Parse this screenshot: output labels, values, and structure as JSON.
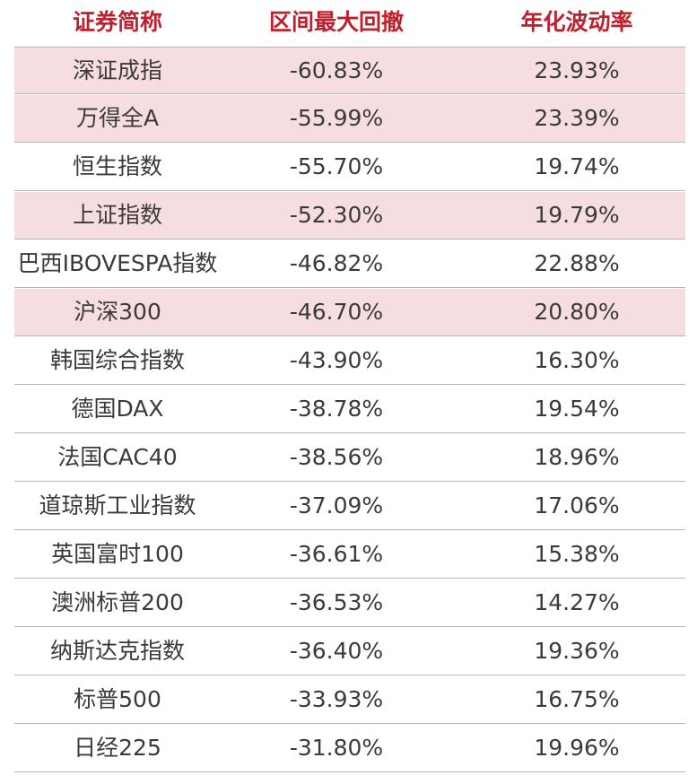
{
  "header": {
    "col1": "证券简称",
    "col2": "区间最大回撤",
    "col3": "年化波动率"
  },
  "rows": [
    {
      "name": "深证成指",
      "drawdown": "-60.83%",
      "volatility": "23.93%",
      "highlight": true
    },
    {
      "name": "万得全A",
      "drawdown": "-55.99%",
      "volatility": "23.39%",
      "highlight": true
    },
    {
      "name": "恒生指数",
      "drawdown": "-55.70%",
      "volatility": "19.74%",
      "highlight": false
    },
    {
      "name": "上证指数",
      "drawdown": "-52.30%",
      "volatility": "19.79%",
      "highlight": true
    },
    {
      "name": "巴西IBOVESPA指数",
      "drawdown": "-46.82%",
      "volatility": "22.88%",
      "highlight": false
    },
    {
      "name": "沪深300",
      "drawdown": "-46.70%",
      "volatility": "20.80%",
      "highlight": true
    },
    {
      "name": "韩国综合指数",
      "drawdown": "-43.90%",
      "volatility": "16.30%",
      "highlight": false
    },
    {
      "name": "德国DAX",
      "drawdown": "-38.78%",
      "volatility": "19.54%",
      "highlight": false
    },
    {
      "name": "法国CAC40",
      "drawdown": "-38.56%",
      "volatility": "18.96%",
      "highlight": false
    },
    {
      "name": "道琼斯工业指数",
      "drawdown": "-37.09%",
      "volatility": "17.06%",
      "highlight": false
    },
    {
      "name": "英国富时100",
      "drawdown": "-36.61%",
      "volatility": "15.38%",
      "highlight": false
    },
    {
      "name": "澳洲标普200",
      "drawdown": "-36.53%",
      "volatility": "14.27%",
      "highlight": false
    },
    {
      "name": "纳斯达克指数",
      "drawdown": "-36.40%",
      "volatility": "19.36%",
      "highlight": false
    },
    {
      "name": "标普500",
      "drawdown": "-33.93%",
      "volatility": "16.75%",
      "highlight": false
    },
    {
      "name": "日经225",
      "drawdown": "-31.80%",
      "volatility": "19.96%",
      "highlight": false
    }
  ],
  "colors": {
    "header_text": "#c0202e",
    "highlight_row": "#f6dde0",
    "body_text": "#3a3a3a",
    "divider": "#b5b5b5"
  }
}
